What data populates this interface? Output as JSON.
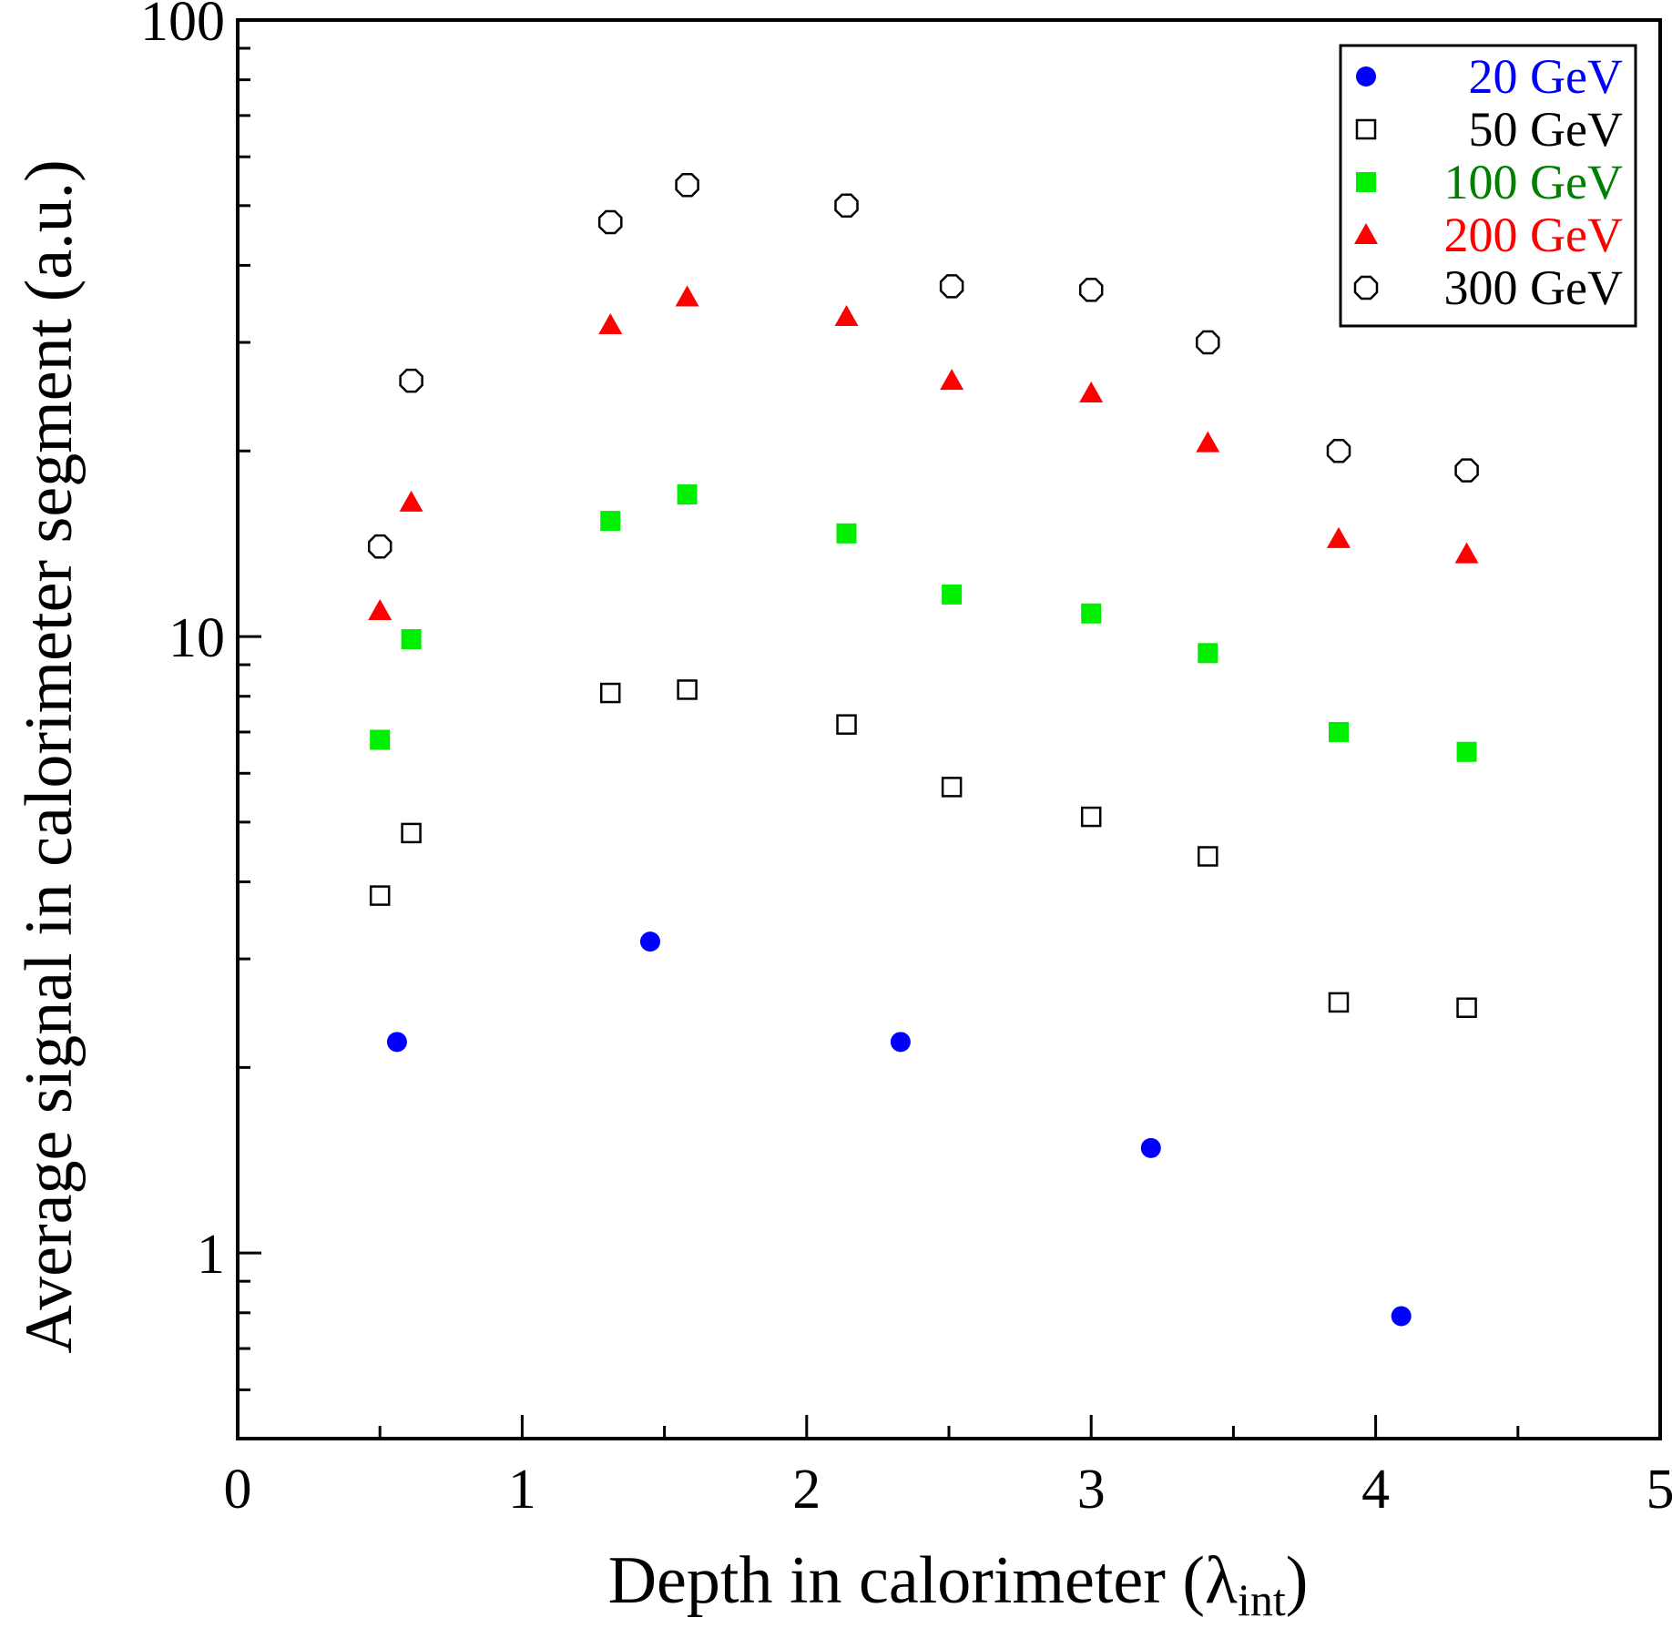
{
  "chart_data": {
    "type": "scatter",
    "xlabel": "Depth in calorimeter (λ",
    "xlabel_sub": "int",
    "xlabel_close": ")",
    "ylabel": "Average signal in calorimeter segment (a.u.)",
    "xlim": [
      0,
      5
    ],
    "ylim": [
      0.5,
      100
    ],
    "yscale": "log",
    "xticks": [
      0,
      1,
      2,
      3,
      4,
      5
    ],
    "xtick_labels": [
      "0",
      "1",
      "2",
      "3",
      "4",
      "5"
    ],
    "yticks": [
      1,
      10,
      100
    ],
    "ytick_labels": [
      "1",
      "10",
      "100"
    ],
    "grid": false,
    "legend_position": "top-right",
    "series": [
      {
        "name": "20 GeV",
        "color": "#0000ff",
        "marker": "filled-circle",
        "x": [
          0.56,
          1.45,
          2.33,
          3.21,
          4.09
        ],
        "y": [
          2.2,
          3.2,
          2.2,
          1.48,
          0.79
        ]
      },
      {
        "name": "50 GeV",
        "color": "#000000",
        "marker": "open-square",
        "x": [
          0.5,
          0.61,
          1.31,
          1.58,
          2.14,
          2.51,
          3.0,
          3.41,
          3.87,
          4.32
        ],
        "y": [
          3.8,
          4.8,
          8.1,
          8.2,
          7.2,
          5.7,
          5.1,
          4.4,
          2.55,
          2.5
        ]
      },
      {
        "name": "100 GeV",
        "color": "#00ee00",
        "legend_text_color": "#008000",
        "marker": "filled-square",
        "x": [
          0.5,
          0.61,
          1.31,
          1.58,
          2.14,
          2.51,
          3.0,
          3.41,
          3.87,
          4.32
        ],
        "y": [
          6.8,
          9.9,
          15.4,
          17.0,
          14.7,
          11.7,
          10.9,
          9.4,
          7.0,
          6.5
        ]
      },
      {
        "name": "200 GeV",
        "color": "#ff0000",
        "marker": "filled-triangle",
        "x": [
          0.5,
          0.61,
          1.31,
          1.58,
          2.14,
          2.51,
          3.0,
          3.41,
          3.87,
          4.32
        ],
        "y": [
          11.0,
          16.5,
          32.0,
          35.5,
          33.0,
          26.0,
          24.8,
          20.6,
          14.4,
          13.6
        ]
      },
      {
        "name": "300 GeV",
        "color": "#000000",
        "marker": "open-circle",
        "x": [
          0.5,
          0.61,
          1.31,
          1.58,
          2.14,
          2.51,
          3.0,
          3.41,
          3.87,
          4.32
        ],
        "y": [
          14.0,
          26.0,
          47.0,
          54.0,
          50.0,
          37.0,
          36.5,
          30.0,
          20.0,
          18.6
        ]
      }
    ]
  }
}
